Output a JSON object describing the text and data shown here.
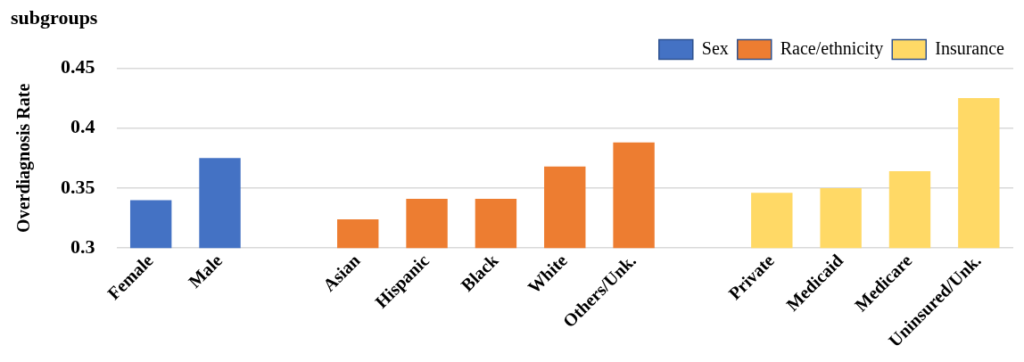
{
  "chart_data": {
    "type": "bar",
    "title": "subgroups",
    "ylabel": "Overdiagnosis Rate",
    "categories": [
      "Female",
      "Male",
      null,
      "Asian",
      "Hispanic",
      "Black",
      "White",
      "Others/Unk.",
      null,
      "Private",
      "Medicaid",
      "Medicare",
      "Uninsured/Unk."
    ],
    "series": [
      {
        "name": "Sex",
        "color": "#4472c4",
        "values": [
          0.34,
          0.375,
          null,
          null,
          null,
          null,
          null,
          null,
          null,
          null,
          null,
          null,
          null
        ]
      },
      {
        "name": "Race/ethnicity",
        "color": "#ed7d31",
        "values": [
          null,
          null,
          null,
          0.324,
          0.341,
          0.341,
          0.368,
          0.388,
          null,
          null,
          null,
          null,
          null
        ]
      },
      {
        "name": "Insurance",
        "color": "#ffd966",
        "values": [
          null,
          null,
          null,
          null,
          null,
          null,
          null,
          null,
          null,
          0.346,
          0.35,
          0.364,
          0.425
        ]
      }
    ],
    "ylim": [
      0.3,
      0.45
    ],
    "yticks": [
      0.3,
      0.35,
      0.4,
      0.45
    ],
    "grid": "y",
    "legend": "top right"
  }
}
